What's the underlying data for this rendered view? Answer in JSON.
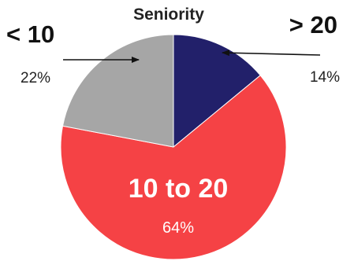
{
  "chart_data": {
    "type": "pie",
    "title": "Seniority",
    "slices": [
      {
        "label": "> 20",
        "value": 14,
        "value_label": "14%",
        "color": "#22206a"
      },
      {
        "label": "10 to 20",
        "value": 64,
        "value_label": "64%",
        "color": "#f54245"
      },
      {
        "label": "< 10",
        "value": 22,
        "value_label": "22%",
        "color": "#a6a6a6"
      }
    ],
    "start_angle_deg": 0,
    "direction": "clockwise",
    "legend": "none"
  }
}
